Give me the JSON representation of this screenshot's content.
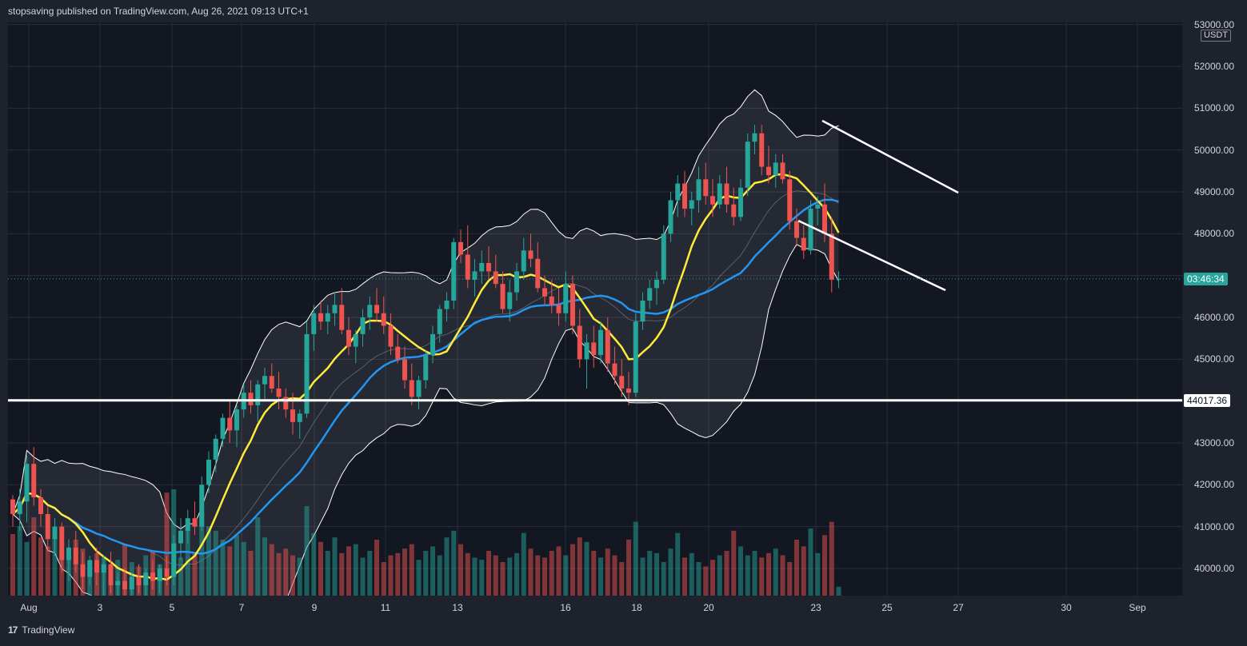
{
  "header": {
    "publish_line": "stopsaving published on TradingView.com, Aug 26, 2021 09:13 UTC+1"
  },
  "footer": {
    "logo_icon": "tradingview-logo-icon",
    "logo_glyph": "17",
    "brand": "TradingView"
  },
  "colors": {
    "bull": "#26a69a",
    "bear": "#ef5350",
    "ma_fast": "#ffeb3b",
    "ma_slow": "#2196f3",
    "band": "#ffffff",
    "level_line": "#ffffff"
  },
  "price_axis": {
    "unit": "USDT",
    "ticks": [
      "53000.00",
      "52000.00",
      "51000.00",
      "50000.00",
      "49000.00",
      "48000.00",
      "46000.00",
      "45000.00",
      "43000.00",
      "42000.00",
      "41000.00",
      "40000.00"
    ],
    "countdown": "03:46:34",
    "level_label": "44017.36"
  },
  "time_axis": {
    "ticks": [
      "Aug",
      "3",
      "5",
      "7",
      "9",
      "11",
      "13",
      "16",
      "18",
      "20",
      "23",
      "25",
      "27",
      "30",
      "Sep"
    ]
  },
  "chart_data": {
    "type": "candlestick",
    "symbol_quote": "USDT",
    "timeframe": "4h",
    "ylim": [
      39300,
      53000
    ],
    "horizontal_level": 44017.36,
    "last_price": 46920,
    "candles": [
      [
        41650,
        41750,
        41000,
        41300
      ],
      [
        41300,
        41900,
        40900,
        41600
      ],
      [
        41600,
        42700,
        41100,
        42500
      ],
      [
        42500,
        42900,
        41500,
        41700
      ],
      [
        41700,
        41900,
        41000,
        41300
      ],
      [
        41300,
        41500,
        40400,
        40700
      ],
      [
        40700,
        41200,
        40300,
        41000
      ],
      [
        41000,
        41100,
        39900,
        40200
      ],
      [
        40200,
        40700,
        39700,
        40500
      ],
      [
        40500,
        40900,
        39900,
        40100
      ],
      [
        40100,
        40400,
        39500,
        39800
      ],
      [
        39800,
        40300,
        39600,
        40200
      ],
      [
        40200,
        40500,
        39600,
        39900
      ],
      [
        39900,
        40300,
        39300,
        40100
      ],
      [
        40100,
        40400,
        39400,
        39600
      ],
      [
        39600,
        39900,
        39300,
        39700
      ],
      [
        39700,
        40000,
        39300,
        39500
      ],
      [
        39500,
        39900,
        39300,
        39800
      ],
      [
        39800,
        40100,
        39400,
        39600
      ],
      [
        39600,
        40000,
        39300,
        39900
      ],
      [
        39900,
        40200,
        39500,
        39700
      ],
      [
        39700,
        40100,
        39400,
        40000
      ],
      [
        40000,
        40300,
        39600,
        39800
      ],
      [
        39800,
        40800,
        39600,
        40600
      ],
      [
        40600,
        41200,
        40200,
        40900
      ],
      [
        40900,
        41400,
        40600,
        41200
      ],
      [
        41200,
        41600,
        40800,
        41000
      ],
      [
        41000,
        42200,
        40900,
        42000
      ],
      [
        42000,
        42800,
        41800,
        42600
      ],
      [
        42600,
        43200,
        42300,
        43100
      ],
      [
        43100,
        43700,
        42900,
        43600
      ],
      [
        43600,
        44000,
        43000,
        43300
      ],
      [
        43300,
        43900,
        42900,
        43800
      ],
      [
        43800,
        44400,
        43600,
        44200
      ],
      [
        44200,
        44500,
        43700,
        43900
      ],
      [
        43900,
        44500,
        43500,
        44400
      ],
      [
        44400,
        44800,
        44000,
        44600
      ],
      [
        44600,
        44900,
        44200,
        44300
      ],
      [
        44300,
        44700,
        43800,
        44100
      ],
      [
        44100,
        44300,
        43600,
        43800
      ],
      [
        43800,
        44200,
        43200,
        43500
      ],
      [
        43500,
        43800,
        43100,
        43700
      ],
      [
        43700,
        45900,
        43600,
        45600
      ],
      [
        45600,
        46300,
        45200,
        46100
      ],
      [
        46100,
        46400,
        45700,
        45900
      ],
      [
        45900,
        46300,
        45600,
        46100
      ],
      [
        46100,
        46600,
        45800,
        46300
      ],
      [
        46300,
        46700,
        45600,
        45700
      ],
      [
        45700,
        46000,
        45100,
        45300
      ],
      [
        45300,
        45700,
        44900,
        45600
      ],
      [
        45600,
        46200,
        45300,
        46000
      ],
      [
        46000,
        46500,
        45700,
        46300
      ],
      [
        46300,
        46700,
        45900,
        46100
      ],
      [
        46100,
        46500,
        45600,
        45800
      ],
      [
        45800,
        46100,
        45100,
        45300
      ],
      [
        45300,
        45600,
        44900,
        45000
      ],
      [
        45000,
        45300,
        44300,
        44500
      ],
      [
        44500,
        44900,
        43900,
        44100
      ],
      [
        44100,
        44600,
        43800,
        44500
      ],
      [
        44500,
        45200,
        44300,
        45100
      ],
      [
        45100,
        45800,
        44900,
        45600
      ],
      [
        45600,
        46300,
        45400,
        46200
      ],
      [
        46200,
        46600,
        45900,
        46400
      ],
      [
        46400,
        47900,
        46200,
        47800
      ],
      [
        47800,
        48100,
        47300,
        47500
      ],
      [
        47500,
        48200,
        46700,
        46900
      ],
      [
        46900,
        47400,
        46500,
        47100
      ],
      [
        47100,
        47600,
        46800,
        47300
      ],
      [
        47300,
        47700,
        46900,
        47100
      ],
      [
        47100,
        47500,
        46700,
        46800
      ],
      [
        46800,
        47100,
        46100,
        46200
      ],
      [
        46200,
        46900,
        45900,
        46600
      ],
      [
        46600,
        47300,
        46400,
        47100
      ],
      [
        47100,
        47900,
        46900,
        47600
      ],
      [
        47600,
        48000,
        47200,
        47400
      ],
      [
        47400,
        47800,
        46600,
        46700
      ],
      [
        46700,
        47000,
        46300,
        46500
      ],
      [
        46500,
        46900,
        46100,
        46300
      ],
      [
        46300,
        46700,
        45800,
        46100
      ],
      [
        46100,
        47100,
        45900,
        46800
      ],
      [
        46800,
        47000,
        45600,
        45800
      ],
      [
        45800,
        46200,
        44800,
        45000
      ],
      [
        45000,
        45600,
        44300,
        45400
      ],
      [
        45400,
        45800,
        44800,
        45100
      ],
      [
        45100,
        45900,
        44900,
        45700
      ],
      [
        45700,
        46000,
        44700,
        44900
      ],
      [
        44900,
        45300,
        44400,
        44600
      ],
      [
        44600,
        45000,
        44100,
        44300
      ],
      [
        44300,
        44700,
        43900,
        44200
      ],
      [
        44200,
        46100,
        44100,
        45900
      ],
      [
        45900,
        46600,
        45700,
        46400
      ],
      [
        46400,
        46900,
        46200,
        46700
      ],
      [
        46700,
        47100,
        46300,
        46900
      ],
      [
        46900,
        48200,
        46800,
        48000
      ],
      [
        48000,
        49000,
        47800,
        48800
      ],
      [
        48800,
        49400,
        48400,
        49200
      ],
      [
        49200,
        49500,
        48400,
        48600
      ],
      [
        48600,
        49000,
        48200,
        48800
      ],
      [
        48800,
        49600,
        48500,
        49300
      ],
      [
        49300,
        49700,
        48700,
        48900
      ],
      [
        48900,
        49300,
        48400,
        48700
      ],
      [
        48700,
        49400,
        48600,
        49200
      ],
      [
        49200,
        49600,
        48500,
        48700
      ],
      [
        48700,
        49100,
        48200,
        48400
      ],
      [
        48400,
        49300,
        48300,
        49100
      ],
      [
        49100,
        50400,
        48900,
        50200
      ],
      [
        50200,
        50600,
        49900,
        50400
      ],
      [
        50400,
        50600,
        49400,
        49600
      ],
      [
        49600,
        50100,
        49200,
        49400
      ],
      [
        49400,
        49900,
        49100,
        49700
      ],
      [
        49700,
        49900,
        49200,
        49300
      ],
      [
        49300,
        49500,
        48100,
        48300
      ],
      [
        48300,
        48600,
        47700,
        47900
      ],
      [
        47900,
        48200,
        47400,
        47600
      ],
      [
        47600,
        48800,
        47500,
        48600
      ],
      [
        48600,
        48900,
        48200,
        48700
      ],
      [
        48700,
        49200,
        47800,
        48000
      ],
      [
        48000,
        48400,
        46600,
        46900
      ],
      [
        46900,
        47100,
        46700,
        46920
      ]
    ],
    "volume": {
      "max_unit": 1,
      "values": [
        0.55,
        0.62,
        0.48,
        0.7,
        0.52,
        0.44,
        0.58,
        0.4,
        0.36,
        0.5,
        0.42,
        0.3,
        0.38,
        0.34,
        0.28,
        0.32,
        0.46,
        0.3,
        0.26,
        0.36,
        0.4,
        0.28,
        0.92,
        0.95,
        0.34,
        0.6,
        0.38,
        0.75,
        0.62,
        0.58,
        0.5,
        0.44,
        0.54,
        0.48,
        0.4,
        0.7,
        0.52,
        0.46,
        0.38,
        0.42,
        0.36,
        0.34,
        0.8,
        0.56,
        0.48,
        0.4,
        0.52,
        0.38,
        0.44,
        0.46,
        0.34,
        0.4,
        0.5,
        0.3,
        0.36,
        0.38,
        0.42,
        0.46,
        0.32,
        0.4,
        0.44,
        0.36,
        0.52,
        0.58,
        0.46,
        0.38,
        0.34,
        0.32,
        0.4,
        0.36,
        0.3,
        0.34,
        0.38,
        0.56,
        0.42,
        0.36,
        0.34,
        0.4,
        0.44,
        0.36,
        0.46,
        0.52,
        0.48,
        0.4,
        0.34,
        0.42,
        0.36,
        0.3,
        0.5,
        0.66,
        0.34,
        0.4,
        0.38,
        0.3,
        0.42,
        0.56,
        0.34,
        0.38,
        0.3,
        0.26,
        0.32,
        0.36,
        0.4,
        0.58,
        0.44,
        0.36,
        0.4,
        0.34,
        0.38,
        0.42,
        0.36,
        0.3,
        0.5,
        0.44,
        0.6,
        0.38,
        0.54,
        0.66,
        0.08
      ]
    }
  }
}
